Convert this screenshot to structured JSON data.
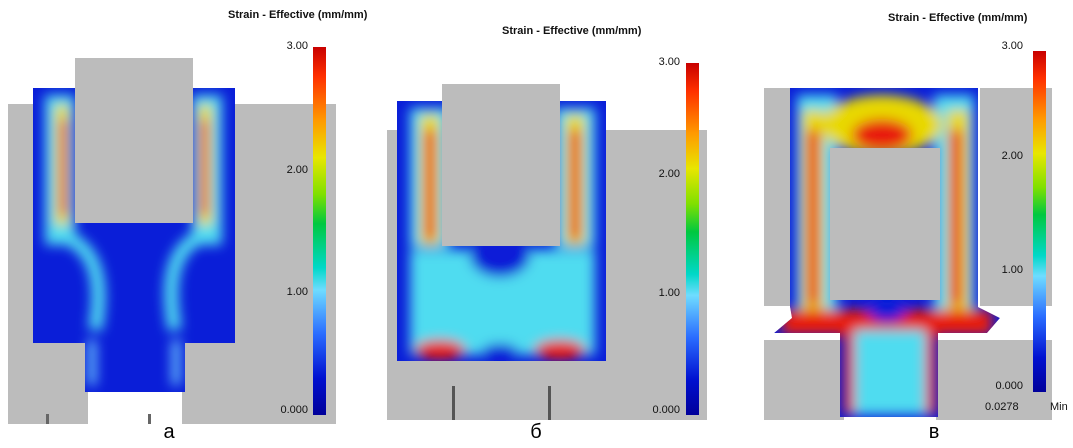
{
  "panels": [
    {
      "title": "Strain - Effective (mm/mm)",
      "ticks": [
        "3.00",
        "2.00",
        "1.00",
        "0.000"
      ],
      "caption": "а"
    },
    {
      "title": "Strain - Effective (mm/mm)",
      "ticks": [
        "3.00",
        "2.00",
        "1.00",
        "0.000"
      ],
      "caption": "б"
    },
    {
      "title": "Strain - Effective (mm/mm)",
      "ticks": [
        "3.00",
        "2.00",
        "1.00",
        "0.000"
      ],
      "min_value": "0.0278",
      "min_label": "Min",
      "caption": "в"
    }
  ],
  "colors": {
    "die": "#bcbcbc",
    "low": "#0a1ed8",
    "mid": "#4fdcf0",
    "high": "#e81a10"
  }
}
